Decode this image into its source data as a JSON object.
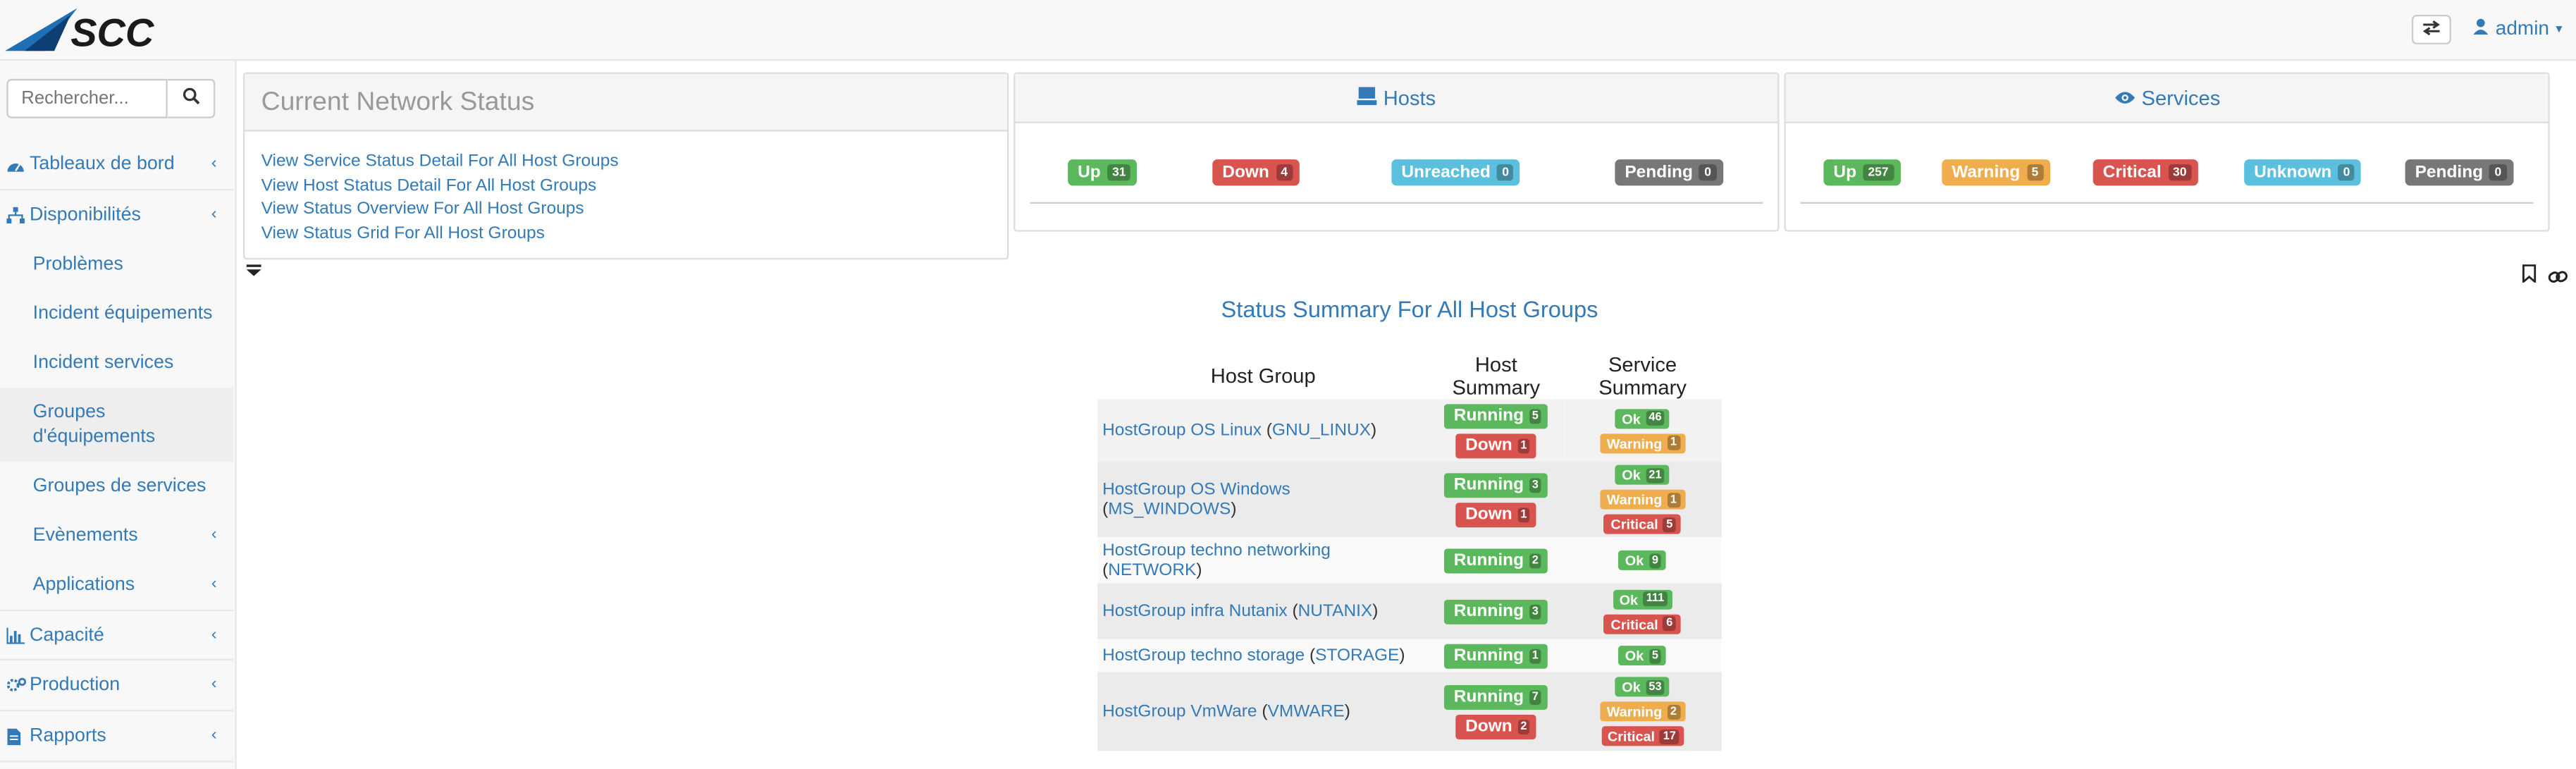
{
  "header": {
    "logo_text": "SCC",
    "user_label": "admin"
  },
  "sidebar": {
    "search": {
      "placeholder": "Rechercher..."
    },
    "items": [
      {
        "label": "Tableaux de bord",
        "icon": "dashboard-icon",
        "level": "top"
      },
      {
        "label": "Disponibilités",
        "icon": "sitemap-icon",
        "level": "top"
      },
      {
        "label": "Problèmes",
        "level": "sub"
      },
      {
        "label": "Incident équipements",
        "level": "sub"
      },
      {
        "label": "Incident services",
        "level": "sub"
      },
      {
        "label": "Groupes d'équipements",
        "level": "sub",
        "active": true
      },
      {
        "label": "Groupes de services",
        "level": "sub"
      },
      {
        "label": "Evènements",
        "level": "sub"
      },
      {
        "label": "Applications",
        "level": "sub"
      },
      {
        "label": "Capacité",
        "icon": "bar-chart-icon",
        "level": "top"
      },
      {
        "label": "Production",
        "icon": "gears-icon",
        "level": "top"
      },
      {
        "label": "Rapports",
        "icon": "file-icon",
        "level": "top"
      }
    ]
  },
  "network_status": {
    "title": "Current Network Status",
    "links": [
      "View Service Status Detail For All Host Groups",
      "View Host Status Detail For All Host Groups",
      "View Status Overview For All Host Groups",
      "View Status Grid For All Host Groups"
    ]
  },
  "hosts_panel": {
    "title": "Hosts",
    "up_label": "Up",
    "up": "31",
    "down_label": "Down",
    "down": "4",
    "unreached_label": "Unreached",
    "unreached": "0",
    "pending_label": "Pending",
    "pending": "0"
  },
  "services_panel": {
    "title": "Services",
    "up_label": "Up",
    "up": "257",
    "warning_label": "Warning",
    "warning": "5",
    "critical_label": "Critical",
    "critical": "30",
    "unknown_label": "Unknown",
    "unknown": "0",
    "pending_label": "Pending",
    "pending": "0"
  },
  "summary": {
    "title": "Status Summary For All Host Groups",
    "headers": {
      "group": "Host Group",
      "host": "Host Summary",
      "service": "Service Summary"
    },
    "labels": {
      "running": "Running",
      "down": "Down",
      "ok": "Ok",
      "warning": "Warning",
      "critical": "Critical"
    },
    "rows": [
      {
        "name": "HostGroup OS Linux",
        "code": "GNU_LINUX",
        "running": "5",
        "down": "1",
        "ok": "46",
        "warning": "1",
        "critical": null
      },
      {
        "name": "HostGroup OS Windows",
        "code": "MS_WINDOWS",
        "running": "3",
        "down": "1",
        "ok": "21",
        "warning": "1",
        "critical": "5"
      },
      {
        "name": "HostGroup techno networking",
        "code": "NETWORK",
        "running": "2",
        "down": null,
        "ok": "9",
        "warning": null,
        "critical": null
      },
      {
        "name": "HostGroup infra Nutanix",
        "code": "NUTANIX",
        "running": "3",
        "down": null,
        "ok": "111",
        "warning": null,
        "critical": "6"
      },
      {
        "name": "HostGroup techno storage",
        "code": "STORAGE",
        "running": "1",
        "down": null,
        "ok": "5",
        "warning": null,
        "critical": null
      },
      {
        "name": "HostGroup VmWare",
        "code": "VMWARE",
        "running": "7",
        "down": "2",
        "ok": "53",
        "warning": "2",
        "critical": "17"
      }
    ]
  },
  "colors": {
    "link": "#337ab7",
    "success": "#5cb85c",
    "danger": "#d9534f",
    "info": "#5bc0de",
    "warning": "#f0ad4e",
    "default": "#777777"
  }
}
